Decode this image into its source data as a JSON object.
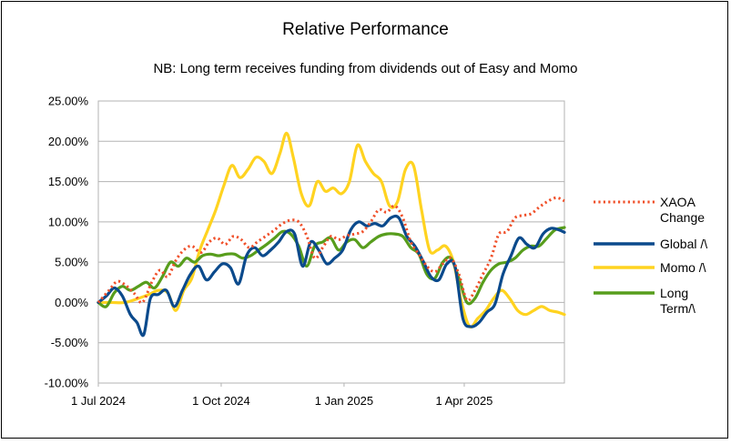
{
  "chart_data": {
    "type": "line",
    "title": "Relative Performance",
    "subtitle": "NB: Long term receives funding from dividends out of Easy and Momo",
    "y_ticks": [
      "25.00%",
      "20.00%",
      "15.00%",
      "10.00%",
      "5.00%",
      "0.00%",
      "-5.00%",
      "-10.00%"
    ],
    "ylim": [
      -10,
      25
    ],
    "x_ticks": [
      "1 Jul 2024",
      "1 Oct 2024",
      "1 Jan 2025",
      "1 Apr 2025"
    ],
    "x_tick_days": [
      0,
      92,
      184,
      274
    ],
    "xlim_days": [
      0,
      349
    ],
    "grid": true,
    "legend_position": "right",
    "series": [
      {
        "name": "XAOA Change",
        "legend_lines": [
          "XAOA",
          "Change"
        ],
        "color": "#f0502a",
        "dash": "dotted",
        "points": [
          [
            0,
            0
          ],
          [
            8,
            1.5
          ],
          [
            14,
            2.6
          ],
          [
            20,
            2.2
          ],
          [
            27,
            1.1
          ],
          [
            33,
            0.0
          ],
          [
            40,
            2.5
          ],
          [
            46,
            4.0
          ],
          [
            52,
            3.2
          ],
          [
            58,
            5.2
          ],
          [
            64,
            6.5
          ],
          [
            70,
            7.0
          ],
          [
            77,
            6.2
          ],
          [
            83,
            7.5
          ],
          [
            89,
            8.0
          ],
          [
            95,
            7.2
          ],
          [
            101,
            8.2
          ],
          [
            107,
            7.8
          ],
          [
            113,
            6.8
          ],
          [
            119,
            7.5
          ],
          [
            126,
            8.3
          ],
          [
            132,
            9.0
          ],
          [
            138,
            9.8
          ],
          [
            144,
            10.2
          ],
          [
            150,
            10.0
          ],
          [
            156,
            8.3
          ],
          [
            162,
            5.5
          ],
          [
            168,
            6.8
          ],
          [
            174,
            8.2
          ],
          [
            180,
            7.8
          ],
          [
            186,
            8.3
          ],
          [
            192,
            8.5
          ],
          [
            198,
            8.8
          ],
          [
            204,
            10.0
          ],
          [
            210,
            11.5
          ],
          [
            216,
            11.2
          ],
          [
            222,
            12.0
          ],
          [
            228,
            10.5
          ],
          [
            234,
            7.5
          ],
          [
            240,
            6.0
          ],
          [
            246,
            4.5
          ],
          [
            252,
            3.8
          ],
          [
            258,
            4.8
          ],
          [
            264,
            5.5
          ],
          [
            270,
            3.5
          ],
          [
            276,
            0.3
          ],
          [
            282,
            1.5
          ],
          [
            288,
            3.5
          ],
          [
            294,
            5.5
          ],
          [
            300,
            8.5
          ],
          [
            306,
            8.8
          ],
          [
            312,
            10.5
          ],
          [
            318,
            10.8
          ],
          [
            324,
            11.0
          ],
          [
            330,
            11.8
          ],
          [
            336,
            12.5
          ],
          [
            343,
            13.0
          ],
          [
            349,
            12.6
          ]
        ]
      },
      {
        "name": "Global /\\",
        "legend_lines": [
          "Global /\\"
        ],
        "color": "#0b4a8c",
        "dash": "solid",
        "points": [
          [
            0,
            0
          ],
          [
            6,
            0.8
          ],
          [
            12,
            1.8
          ],
          [
            18,
            0.8
          ],
          [
            24,
            -1.5
          ],
          [
            29,
            -2.5
          ],
          [
            34,
            -4.0
          ],
          [
            39,
            0.5
          ],
          [
            45,
            1.0
          ],
          [
            51,
            1.5
          ],
          [
            57,
            -0.5
          ],
          [
            63,
            1.5
          ],
          [
            69,
            3.5
          ],
          [
            75,
            4.5
          ],
          [
            81,
            2.8
          ],
          [
            87,
            3.8
          ],
          [
            93,
            4.8
          ],
          [
            99,
            4.3
          ],
          [
            105,
            2.3
          ],
          [
            111,
            5.8
          ],
          [
            117,
            6.8
          ],
          [
            123,
            5.8
          ],
          [
            129,
            6.5
          ],
          [
            135,
            7.5
          ],
          [
            141,
            8.8
          ],
          [
            147,
            8.5
          ],
          [
            153,
            4.5
          ],
          [
            159,
            7.5
          ],
          [
            165,
            6.5
          ],
          [
            171,
            4.8
          ],
          [
            177,
            5.5
          ],
          [
            183,
            6.5
          ],
          [
            189,
            9.0
          ],
          [
            195,
            10.0
          ],
          [
            201,
            9.5
          ],
          [
            207,
            9.8
          ],
          [
            213,
            9.5
          ],
          [
            219,
            10.5
          ],
          [
            225,
            10.5
          ],
          [
            231,
            8.2
          ],
          [
            237,
            7.0
          ],
          [
            243,
            5.2
          ],
          [
            249,
            3.2
          ],
          [
            255,
            2.8
          ],
          [
            261,
            4.8
          ],
          [
            267,
            4.5
          ],
          [
            273,
            -2.0
          ],
          [
            279,
            -3.0
          ],
          [
            285,
            -2.5
          ],
          [
            291,
            -1.2
          ],
          [
            297,
            -0.2
          ],
          [
            303,
            3.5
          ],
          [
            309,
            5.8
          ],
          [
            315,
            8.0
          ],
          [
            321,
            7.2
          ],
          [
            327,
            6.8
          ],
          [
            333,
            8.5
          ],
          [
            339,
            9.2
          ],
          [
            345,
            9.0
          ],
          [
            349,
            8.7
          ]
        ]
      },
      {
        "name": "Momo /\\",
        "legend_lines": [
          "Momo /\\"
        ],
        "color": "#ffd320",
        "dash": "solid",
        "points": [
          [
            0,
            0
          ],
          [
            10,
            0
          ],
          [
            20,
            0
          ],
          [
            30,
            0.5
          ],
          [
            38,
            1.0
          ],
          [
            45,
            1.5
          ],
          [
            52,
            1.2
          ],
          [
            58,
            -1.0
          ],
          [
            64,
            1.5
          ],
          [
            70,
            3.0
          ],
          [
            76,
            6.5
          ],
          [
            82,
            9.0
          ],
          [
            88,
            11.5
          ],
          [
            94,
            14.5
          ],
          [
            100,
            17.0
          ],
          [
            106,
            15.5
          ],
          [
            112,
            16.5
          ],
          [
            118,
            18.0
          ],
          [
            124,
            17.5
          ],
          [
            130,
            16.0
          ],
          [
            136,
            18.5
          ],
          [
            141,
            21.0
          ],
          [
            146,
            18.0
          ],
          [
            152,
            13.5
          ],
          [
            158,
            12.0
          ],
          [
            164,
            15.0
          ],
          [
            170,
            13.8
          ],
          [
            176,
            14.2
          ],
          [
            182,
            13.5
          ],
          [
            188,
            15.0
          ],
          [
            194,
            19.5
          ],
          [
            200,
            17.5
          ],
          [
            206,
            16.0
          ],
          [
            212,
            15.0
          ],
          [
            218,
            12.0
          ],
          [
            224,
            12.5
          ],
          [
            230,
            16.5
          ],
          [
            236,
            17.0
          ],
          [
            242,
            11.5
          ],
          [
            248,
            6.5
          ],
          [
            254,
            6.5
          ],
          [
            260,
            7.0
          ],
          [
            266,
            5.0
          ],
          [
            272,
            0.0
          ],
          [
            278,
            -3.0
          ],
          [
            284,
            -2.0
          ],
          [
            290,
            -1.0
          ],
          [
            296,
            0.5
          ],
          [
            302,
            1.5
          ],
          [
            308,
            0.5
          ],
          [
            314,
            -1.0
          ],
          [
            320,
            -1.5
          ],
          [
            326,
            -1.0
          ],
          [
            332,
            -0.5
          ],
          [
            338,
            -1.0
          ],
          [
            344,
            -1.2
          ],
          [
            349,
            -1.5
          ]
        ]
      },
      {
        "name": "Long Term/\\",
        "legend_lines": [
          "Long",
          "Term/\\"
        ],
        "color": "#579d1c",
        "dash": "solid",
        "points": [
          [
            0,
            0
          ],
          [
            6,
            -0.5
          ],
          [
            12,
            1.2
          ],
          [
            18,
            2.0
          ],
          [
            24,
            1.5
          ],
          [
            30,
            2.0
          ],
          [
            36,
            2.5
          ],
          [
            42,
            1.8
          ],
          [
            48,
            3.2
          ],
          [
            54,
            5.0
          ],
          [
            60,
            4.5
          ],
          [
            66,
            5.5
          ],
          [
            72,
            5.0
          ],
          [
            78,
            5.8
          ],
          [
            84,
            6.0
          ],
          [
            90,
            5.8
          ],
          [
            96,
            6.0
          ],
          [
            102,
            6.0
          ],
          [
            108,
            5.5
          ],
          [
            114,
            5.8
          ],
          [
            120,
            6.5
          ],
          [
            126,
            7.2
          ],
          [
            132,
            8.0
          ],
          [
            138,
            8.8
          ],
          [
            144,
            8.5
          ],
          [
            150,
            7.0
          ],
          [
            156,
            4.5
          ],
          [
            162,
            7.0
          ],
          [
            168,
            7.5
          ],
          [
            174,
            8.0
          ],
          [
            180,
            6.5
          ],
          [
            186,
            7.5
          ],
          [
            192,
            7.8
          ],
          [
            198,
            6.8
          ],
          [
            204,
            7.5
          ],
          [
            210,
            8.2
          ],
          [
            216,
            8.5
          ],
          [
            222,
            8.5
          ],
          [
            228,
            8.2
          ],
          [
            234,
            6.8
          ],
          [
            240,
            6.0
          ],
          [
            246,
            3.5
          ],
          [
            252,
            3.0
          ],
          [
            258,
            5.0
          ],
          [
            264,
            5.5
          ],
          [
            270,
            3.0
          ],
          [
            276,
            0.0
          ],
          [
            282,
            0.5
          ],
          [
            288,
            2.5
          ],
          [
            294,
            4.0
          ],
          [
            300,
            4.8
          ],
          [
            306,
            5.0
          ],
          [
            312,
            5.5
          ],
          [
            318,
            6.5
          ],
          [
            324,
            7.0
          ],
          [
            330,
            7.0
          ],
          [
            336,
            8.0
          ],
          [
            342,
            9.0
          ],
          [
            349,
            9.3
          ]
        ]
      }
    ]
  }
}
